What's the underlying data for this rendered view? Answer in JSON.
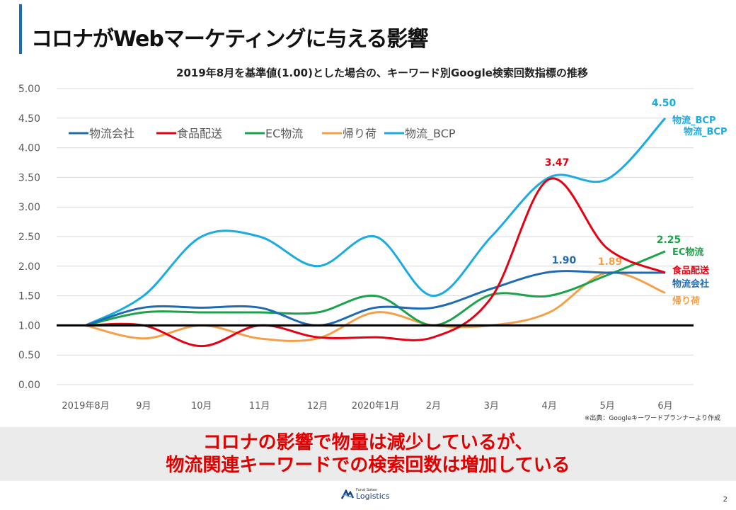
{
  "slide": {
    "title": "コロナがWebマーケティングに与える影響",
    "subtitle": "2019年8月を基準値(1.00)とした場合の、キーワード別Google検索回数指標の推移",
    "source": "※出典：Googleキーワードプランナーより作成",
    "banner_line1": "コロナの影響で物量は減少しているが、",
    "banner_line2": "物流関連キーワードでの検索回数は増加している",
    "logo_small": "Funai Soken",
    "logo_big": "Logistics",
    "page_number": "2",
    "accent_color": "#1f6bb3"
  },
  "chart_data": {
    "type": "line",
    "title": "2019年8月を基準値(1.00)とした場合の、キーワード別Google検索回数指標の推移",
    "xlabel": "",
    "ylabel": "",
    "ylim": [
      0,
      5
    ],
    "yticks": [
      "0.00",
      "0.50",
      "1.00",
      "1.50",
      "2.00",
      "2.50",
      "3.00",
      "3.50",
      "4.00",
      "4.50",
      "5.00"
    ],
    "categories": [
      "2019年8月",
      "9月",
      "10月",
      "11月",
      "12月",
      "2020年1月",
      "2月",
      "3月",
      "4月",
      "5月",
      "6月"
    ],
    "grid": true,
    "legend_position": "top-left",
    "baseline": 1.0,
    "series": [
      {
        "name": "物流会社",
        "color": "#1f6bb3",
        "values": [
          1.0,
          1.3,
          1.3,
          1.3,
          1.0,
          1.3,
          1.3,
          1.62,
          1.9,
          1.89,
          1.89
        ],
        "end_label": "物流会社"
      },
      {
        "name": "食品配送",
        "color": "#e50012",
        "values": [
          1.0,
          1.0,
          0.65,
          1.0,
          0.8,
          0.8,
          0.8,
          1.47,
          3.47,
          2.3,
          1.89
        ],
        "end_label": "食品配送"
      },
      {
        "name": "EC物流",
        "color": "#1aa34a",
        "values": [
          1.0,
          1.22,
          1.22,
          1.22,
          1.22,
          1.5,
          1.0,
          1.52,
          1.5,
          1.85,
          2.25
        ],
        "end_label": "EC物流"
      },
      {
        "name": "帰り荷",
        "color": "#f5a048",
        "values": [
          1.0,
          0.78,
          1.0,
          0.78,
          0.78,
          1.22,
          1.0,
          1.0,
          1.22,
          1.89,
          1.55
        ],
        "end_label": "帰り荷"
      },
      {
        "name": "物流_BCP",
        "color": "#1aabe0",
        "values": [
          1.0,
          1.5,
          2.5,
          2.5,
          2.0,
          2.5,
          1.5,
          2.5,
          3.5,
          3.47,
          4.5
        ],
        "end_label": "物流_BCP"
      }
    ],
    "annotations": [
      {
        "text": "4.50",
        "series": "物流_BCP",
        "category": "6月",
        "color": "#1aabe0"
      },
      {
        "text": "3.47",
        "series": "食品配送",
        "category": "4月",
        "color": "#e50012"
      },
      {
        "text": "2.25",
        "series": "EC物流",
        "category": "6月",
        "color": "#1aa34a"
      },
      {
        "text": "1.90",
        "series": "物流会社",
        "category": "4月",
        "color": "#1f6bb3"
      },
      {
        "text": "1.89",
        "series": "帰り荷",
        "category": "5月",
        "color": "#f5a048"
      },
      {
        "text": "物流_BCP",
        "series": "物流_BCP",
        "category": "6月",
        "color": "#1aabe0"
      }
    ]
  }
}
